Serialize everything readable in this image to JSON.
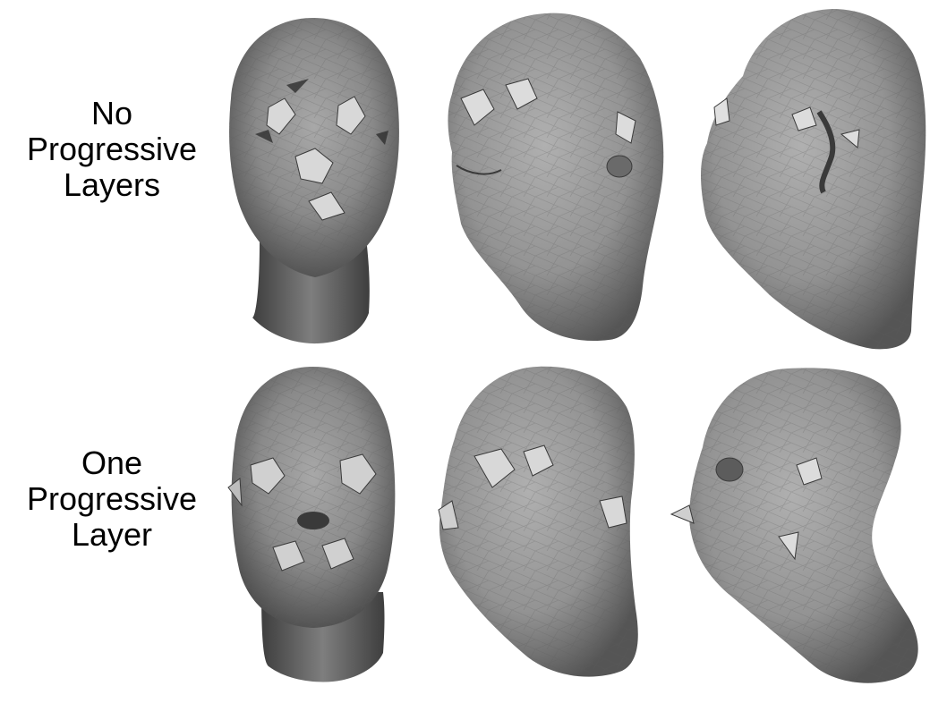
{
  "rows": [
    {
      "label_lines": [
        "No",
        "Progressive",
        "Layers"
      ]
    },
    {
      "label_lines": [
        "One",
        "Progressive",
        "Layer"
      ]
    }
  ],
  "views": [
    "front",
    "three-quarter",
    "side"
  ],
  "colors": {
    "background": "#ffffff",
    "mesh_mid": "#8c8c8c",
    "mesh_dark": "#4a4a4a",
    "mesh_light": "#c8c8c8",
    "label_text": "#000000"
  }
}
